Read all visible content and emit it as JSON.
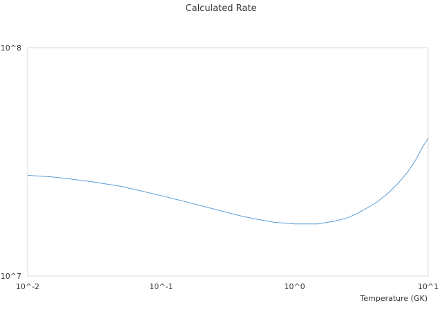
{
  "chart_data": {
    "type": "line",
    "title": "Calculated Rate",
    "xlabel": "Temperature (GK)",
    "ylabel": "",
    "x_scale": "log",
    "y_scale": "log",
    "xlim": [
      0.01,
      10
    ],
    "ylim": [
      10000000,
      100000000
    ],
    "x_tick_labels": [
      "10^-2",
      "10^-1",
      "10^0",
      "10^1"
    ],
    "y_tick_labels": [
      "10^7",
      "10^8"
    ],
    "grid": false,
    "legend": "none",
    "series": [
      {
        "color": "#5b9bd5",
        "points": [
          [
            0.01,
            27600000
          ],
          [
            0.015,
            27200000
          ],
          [
            0.02,
            26700000
          ],
          [
            0.03,
            25900000
          ],
          [
            0.05,
            24700000
          ],
          [
            0.07,
            23600000
          ],
          [
            0.1,
            22500000
          ],
          [
            0.15,
            21200000
          ],
          [
            0.2,
            20300000
          ],
          [
            0.3,
            19100000
          ],
          [
            0.4,
            18300000
          ],
          [
            0.5,
            17800000
          ],
          [
            0.7,
            17200000
          ],
          [
            1.0,
            16900000
          ],
          [
            1.5,
            16900000
          ],
          [
            2.0,
            17400000
          ],
          [
            2.5,
            18000000
          ],
          [
            3.0,
            18900000
          ],
          [
            4.0,
            20800000
          ],
          [
            5.0,
            23000000
          ],
          [
            6.0,
            25600000
          ],
          [
            7.0,
            28500000
          ],
          [
            8.0,
            32000000
          ],
          [
            9.0,
            36500000
          ],
          [
            10.0,
            40000000
          ]
        ]
      }
    ]
  }
}
